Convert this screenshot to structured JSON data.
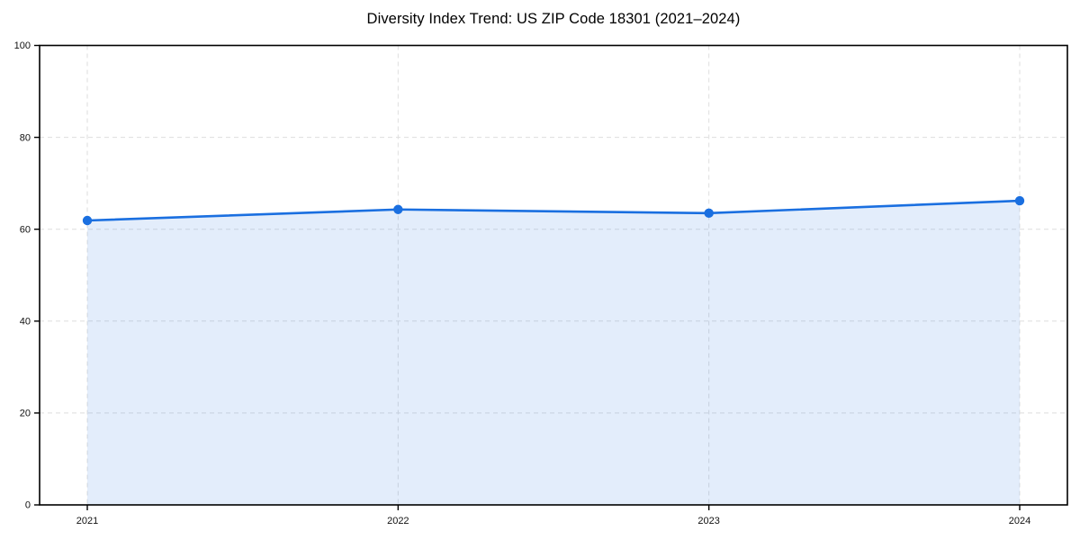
{
  "chart_data": {
    "type": "area",
    "title": "Diversity Index Trend: US ZIP Code 18301 (2021–2024)",
    "x": [
      2021,
      2022,
      2023,
      2024
    ],
    "xtick_labels": [
      "2021",
      "2022",
      "2023",
      "2024"
    ],
    "values": [
      61.9,
      64.3,
      63.5,
      66.2
    ],
    "series_name": "Diversity Index",
    "xlabel": "",
    "ylabel": "",
    "ylim": [
      0,
      100
    ],
    "yticks": [
      0,
      20,
      40,
      60,
      80,
      100
    ],
    "grid": true,
    "grid_style": "dashed",
    "legend": "none",
    "line_color": "#1a6fe0",
    "marker": "circle",
    "fill_color": "#1a6fe0",
    "fill_opacity": 0.12,
    "grid_color": "#dedede",
    "spine_color": "#000000",
    "background_color": "#ffffff"
  }
}
